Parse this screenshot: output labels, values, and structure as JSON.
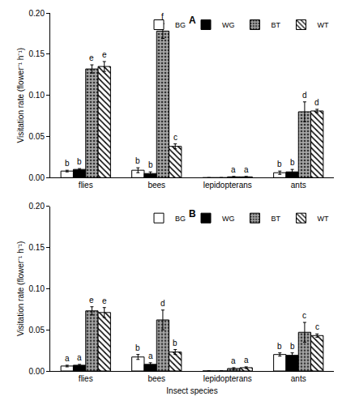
{
  "chart_data": [
    {
      "type": "bar",
      "title": "A",
      "y_label": "Visitation rate (flower⁻¹ h⁻¹)",
      "categories": [
        "flies",
        "bees",
        "lepidopterans",
        "ants"
      ],
      "ylim": [
        0,
        0.2
      ],
      "yticks": [
        {
          "value": 0,
          "label": "0.00"
        },
        {
          "value": 0.05,
          "label": "0.05"
        },
        {
          "value": 0.1,
          "label": "0.10"
        },
        {
          "value": 0.15,
          "label": "0.15"
        },
        {
          "value": 0.2,
          "label": "0.20"
        }
      ],
      "grid": false,
      "legend": "top right",
      "series": [
        {
          "name": "BG",
          "color": "#ffffff",
          "marker": "solid",
          "values": [
            0.008,
            0.009,
            0,
            0.006
          ],
          "errors": [
            0.001,
            0.003,
            0,
            0.002
          ],
          "letters": [
            "b",
            "b",
            null,
            "b"
          ]
        },
        {
          "name": "WG",
          "color": "#000000",
          "marker": "solid",
          "values": [
            0.01,
            0.005,
            0,
            0.007
          ],
          "errors": [
            0.001,
            0.002,
            0,
            0.003
          ],
          "letters": [
            "b",
            "b",
            null,
            "b"
          ]
        },
        {
          "name": "BT",
          "color": "#a6a6a6",
          "marker": "dotted",
          "values": [
            0.132,
            0.178,
            0.001,
            0.08
          ],
          "errors": [
            0.005,
            0.009,
            0.0005,
            0.012
          ],
          "letters": [
            "e",
            "f",
            "a",
            "d"
          ]
        },
        {
          "name": "WT",
          "color": "#ffffff",
          "marker": "hatched",
          "values": [
            0.135,
            0.038,
            0.001,
            0.081
          ],
          "errors": [
            0.006,
            0.003,
            0.0005,
            0.002
          ],
          "letters": [
            "e",
            "c",
            "a",
            "d"
          ]
        }
      ]
    },
    {
      "type": "bar",
      "title": "B",
      "x_label": "Insect species",
      "y_label": "Visitation rate (flower⁻¹ h⁻¹)",
      "categories": [
        "flies",
        "bees",
        "lepidopterans",
        "ants"
      ],
      "ylim": [
        0,
        0.2
      ],
      "yticks": [
        {
          "value": 0,
          "label": "0.00"
        },
        {
          "value": 0.05,
          "label": "0.05"
        },
        {
          "value": 0.1,
          "label": "0.10"
        },
        {
          "value": 0.15,
          "label": "0.15"
        },
        {
          "value": 0.2,
          "label": "0.20"
        }
      ],
      "grid": false,
      "legend": "top right",
      "series": [
        {
          "name": "BG",
          "color": "#ffffff",
          "marker": "solid",
          "values": [
            0.006,
            0.017,
            0,
            0.02
          ],
          "errors": [
            0.001,
            0.003,
            0,
            0.002
          ],
          "letters": [
            "a",
            "b",
            null,
            "b"
          ]
        },
        {
          "name": "WG",
          "color": "#000000",
          "marker": "solid",
          "values": [
            0.007,
            0.008,
            0,
            0.019
          ],
          "errors": [
            0.001,
            0.002,
            0,
            0.003
          ],
          "letters": [
            "a",
            "a",
            null,
            "b"
          ]
        },
        {
          "name": "BT",
          "color": "#a6a6a6",
          "marker": "dotted",
          "values": [
            0.073,
            0.062,
            0.003,
            0.047
          ],
          "errors": [
            0.005,
            0.012,
            0.001,
            0.012
          ],
          "letters": [
            "e",
            "d",
            "a",
            "c"
          ]
        },
        {
          "name": "WT",
          "color": "#ffffff",
          "marker": "hatched",
          "values": [
            0.071,
            0.023,
            0.004,
            0.043
          ],
          "errors": [
            0.006,
            0.003,
            0.001,
            0.002
          ],
          "letters": [
            "e",
            "b",
            "a",
            "c"
          ]
        }
      ]
    }
  ]
}
